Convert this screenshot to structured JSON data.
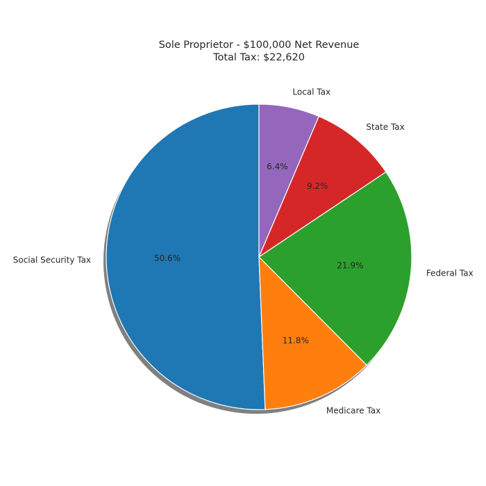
{
  "chart_data": {
    "type": "pie",
    "title_line1": "Sole Proprietor - $100,000 Net Revenue",
    "title_line2": "Total Tax: $22,620",
    "start_angle_deg": 90,
    "direction": "counterclockwise",
    "shadow": true,
    "slices": [
      {
        "label": "Social Security Tax",
        "value": 50.6,
        "pct_text": "50.6%",
        "color": "#1f77b4"
      },
      {
        "label": "Medicare Tax",
        "value": 11.8,
        "pct_text": "11.8%",
        "color": "#ff7f0e"
      },
      {
        "label": "Federal Tax",
        "value": 21.9,
        "pct_text": "21.9%",
        "color": "#2ca02c"
      },
      {
        "label": "State Tax",
        "value": 9.2,
        "pct_text": "9.2%",
        "color": "#d62728"
      },
      {
        "label": "Local Tax",
        "value": 6.4,
        "pct_text": "6.4%",
        "color": "#9467bd"
      }
    ]
  }
}
